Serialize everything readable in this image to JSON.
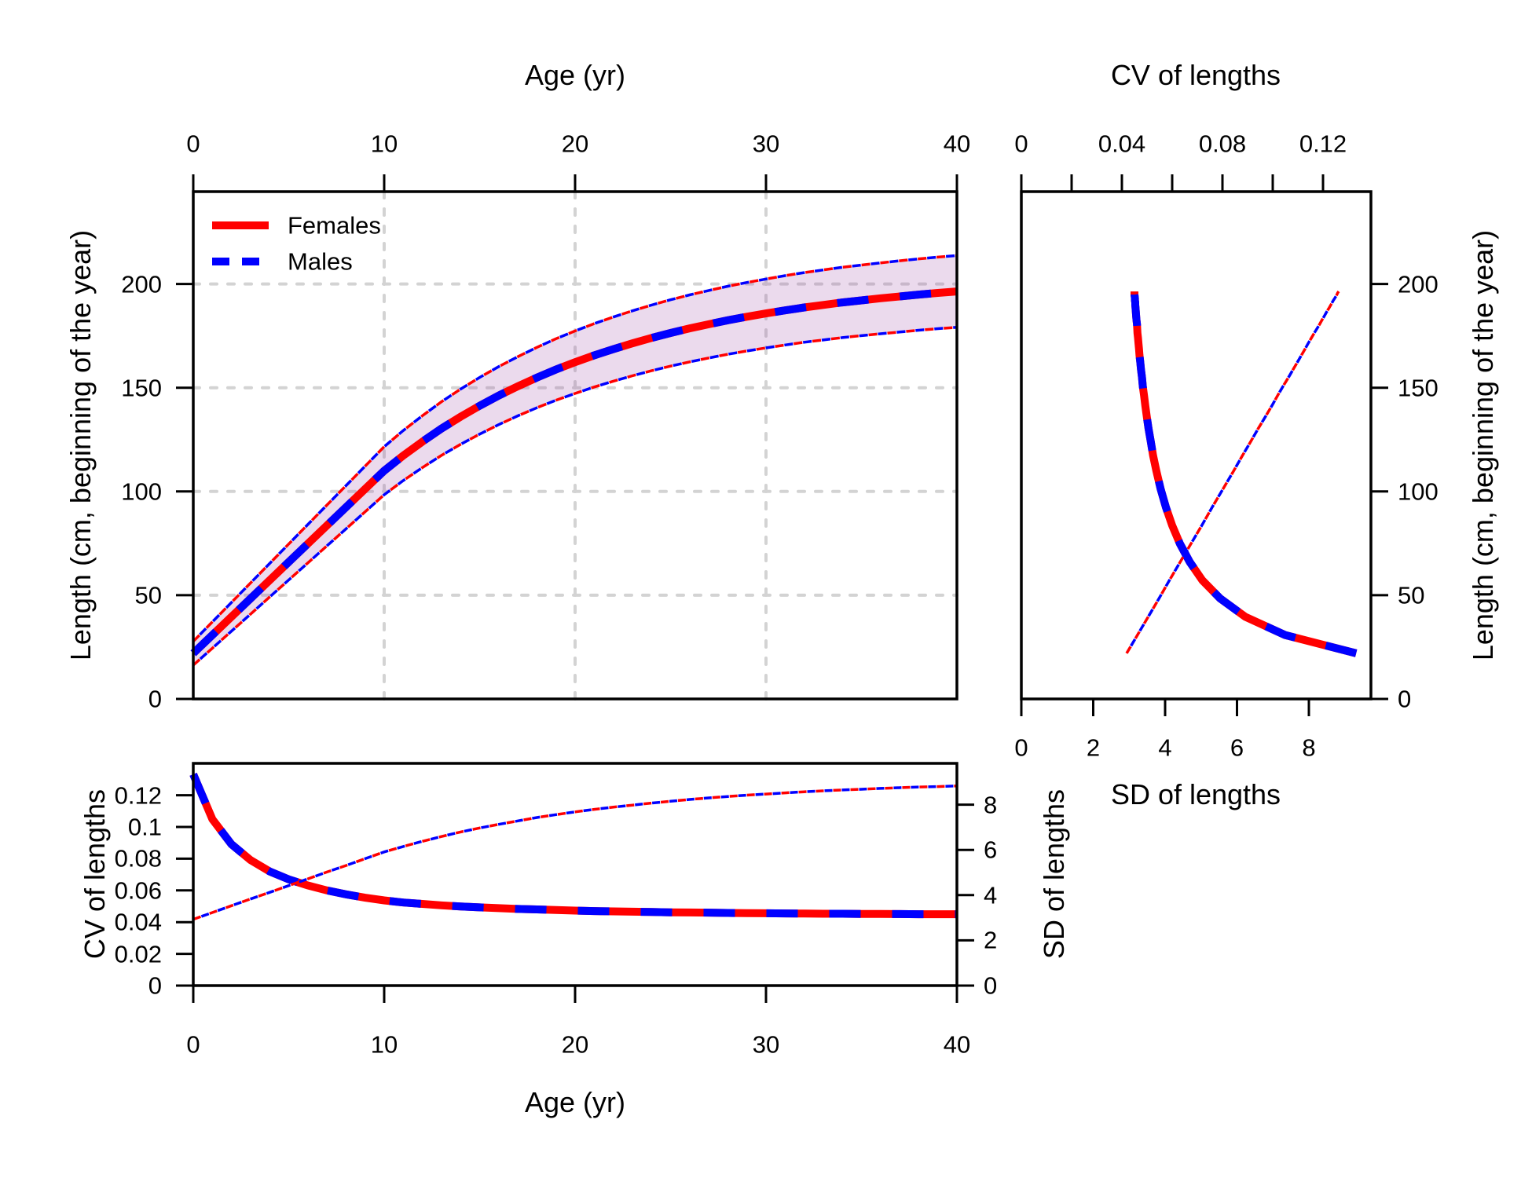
{
  "figure": {
    "background": "#ffffff"
  },
  "colors": {
    "females": "#ff0000",
    "males": "#0000ff",
    "band_fill": "rgba(166,86,174,0.22)",
    "grid": "#d3d3d3",
    "axis": "#000000"
  },
  "legend": {
    "items": [
      {
        "label": "Females",
        "style": "solid",
        "color": "#ff0000"
      },
      {
        "label": "Males",
        "style": "dashed",
        "color": "#0000ff"
      }
    ]
  },
  "labels": {
    "age_axis_title": "Age (yr)",
    "cv_axis_title": "CV of lengths",
    "length_axis_title": "Length (cm, beginning of the year)",
    "sd_axis_title": "SD of lengths"
  },
  "chart_data": {
    "type": "line",
    "note": "Females and Males curves are identical and drawn as alternating red/blue dashes; shaded band = length +/- 1.96*SD",
    "age": [
      0,
      1,
      2,
      3,
      4,
      5,
      6,
      7,
      8,
      9,
      10,
      11,
      12,
      13,
      14,
      15,
      16,
      17,
      18,
      19,
      20,
      21,
      22,
      23,
      24,
      25,
      26,
      27,
      28,
      29,
      30,
      31,
      32,
      33,
      34,
      35,
      36,
      37,
      38,
      39,
      40
    ],
    "length_cm": [
      22,
      30.8,
      39.6,
      48.4,
      57.2,
      66,
      74.8,
      83.6,
      92.4,
      101.2,
      110,
      117.3,
      124,
      130.3,
      136,
      141.3,
      146.2,
      150.7,
      154.9,
      158.8,
      162.3,
      165.6,
      168.6,
      171.4,
      174,
      176.4,
      178.6,
      180.6,
      182.5,
      184.2,
      185.8,
      187.3,
      188.7,
      189.9,
      191.1,
      192.1,
      193.1,
      194,
      194.9,
      195.7,
      196.4
    ],
    "sd_of_lengths": [
      2.93,
      3.23,
      3.53,
      3.83,
      4.12,
      4.42,
      4.72,
      5.02,
      5.31,
      5.61,
      5.91,
      6.15,
      6.38,
      6.59,
      6.79,
      6.97,
      7.13,
      7.28,
      7.43,
      7.56,
      7.68,
      7.79,
      7.89,
      7.98,
      8.07,
      8.15,
      8.23,
      8.3,
      8.36,
      8.42,
      8.47,
      8.52,
      8.57,
      8.61,
      8.65,
      8.68,
      8.72,
      8.75,
      8.78,
      8.8,
      8.83
    ],
    "cv_of_lengths": [
      0.1332,
      0.1049,
      0.0891,
      0.0791,
      0.072,
      0.067,
      0.0631,
      0.06,
      0.0575,
      0.0554,
      0.0537,
      0.0524,
      0.0515,
      0.0506,
      0.0499,
      0.0493,
      0.0488,
      0.0483,
      0.048,
      0.0476,
      0.0473,
      0.047,
      0.0468,
      0.0466,
      0.0464,
      0.0462,
      0.0461,
      0.046,
      0.0458,
      0.0457,
      0.0456,
      0.0455,
      0.0454,
      0.0453,
      0.0453,
      0.0452,
      0.0452,
      0.0451,
      0.045,
      0.045,
      0.045
    ],
    "band": {
      "type": "interval",
      "multiplier": 1.96,
      "basis": "length_cm +/- 1.96 * sd_of_lengths"
    },
    "panels": [
      {
        "id": "length-at-age",
        "x_axis": {
          "title": "Age (yr)",
          "side": "top",
          "ticks": [
            0,
            10,
            20,
            30,
            40
          ],
          "labels": [
            "0",
            "10",
            "20",
            "30",
            "40"
          ],
          "range": [
            0,
            40
          ]
        },
        "y_axis": {
          "title": "Length (cm, beginning of the year)",
          "side": "left",
          "ticks": [
            0,
            50,
            100,
            150,
            200
          ],
          "labels": [
            "0",
            "50",
            "100",
            "150",
            "200"
          ],
          "range": [
            0,
            244.6
          ]
        },
        "grid": true,
        "legend": [
          "Females",
          "Males"
        ]
      },
      {
        "id": "cv-and-sd-vs-length",
        "top_axis": {
          "title": "CV of lengths",
          "ticks": [
            0,
            0.02,
            0.04,
            0.06,
            0.08,
            0.1,
            0.12
          ],
          "labeled_ticks": [
            0,
            0.04,
            0.08,
            0.12
          ],
          "labels": [
            "0",
            "0.04",
            "0.08",
            "0.12"
          ],
          "range": [
            0,
            0.139
          ]
        },
        "bottom_axis": {
          "title": "SD of lengths",
          "ticks": [
            0,
            2,
            4,
            6,
            8
          ],
          "labels": [
            "0",
            "2",
            "4",
            "6",
            "8"
          ],
          "range": [
            0,
            9.73
          ]
        },
        "right_axis": {
          "title": "Length (cm, beginning of the year)",
          "ticks": [
            0,
            50,
            100,
            150,
            200
          ],
          "labels": [
            "0",
            "50",
            "100",
            "150",
            "200"
          ],
          "range": [
            0,
            244.6
          ]
        },
        "grid": false
      },
      {
        "id": "cv-and-sd-vs-age",
        "bottom_axis": {
          "title": "Age (yr)",
          "ticks": [
            0,
            10,
            20,
            30,
            40
          ],
          "labels": [
            "0",
            "10",
            "20",
            "30",
            "40"
          ],
          "range": [
            0,
            40
          ]
        },
        "left_axis": {
          "title": "CV of lengths",
          "ticks": [
            0,
            0.02,
            0.04,
            0.06,
            0.08,
            0.1,
            0.12
          ],
          "labels": [
            "0",
            "0.02",
            "0.04",
            "0.06",
            "0.08",
            "0.1",
            "0.12"
          ],
          "range": [
            0,
            0.14
          ]
        },
        "right_axis": {
          "title": "SD of lengths",
          "ticks": [
            0,
            2,
            4,
            6,
            8
          ],
          "labels": [
            "0",
            "2",
            "4",
            "6",
            "8"
          ],
          "range": [
            0,
            9.83
          ]
        },
        "grid": false
      }
    ]
  }
}
